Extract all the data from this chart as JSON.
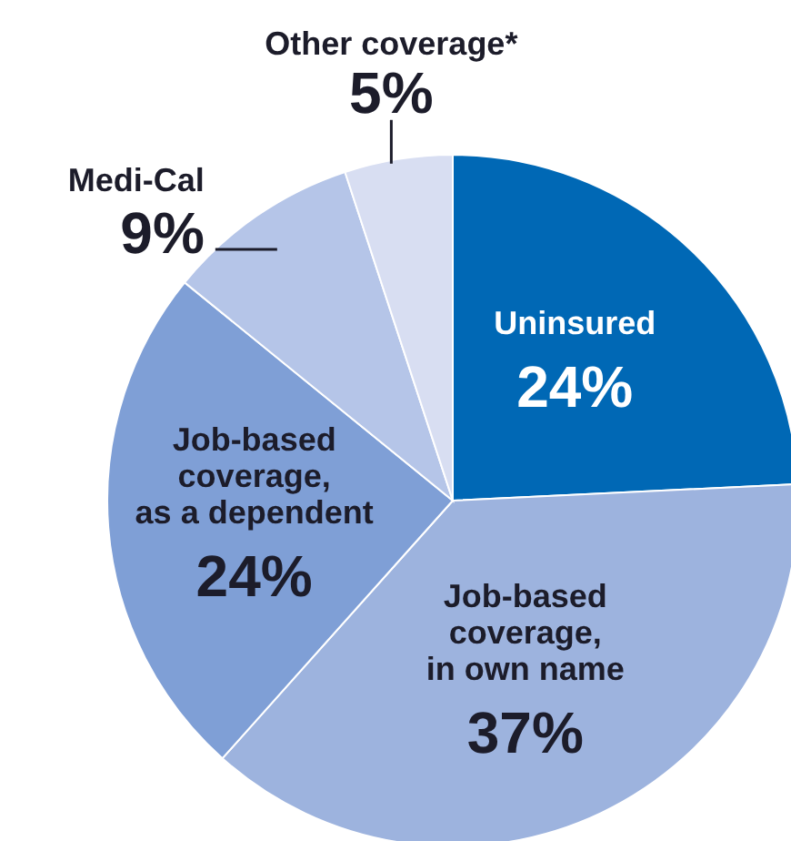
{
  "chart_data": {
    "type": "pie",
    "categories": [
      "Uninsured",
      "Job-based coverage, in own name",
      "Job-based coverage, as a dependent",
      "Medi-Cal",
      "Other coverage*"
    ],
    "values": [
      24,
      37,
      24,
      9,
      5
    ],
    "value_labels": [
      "24%",
      "37%",
      "24%",
      "9%",
      "5%"
    ],
    "colors": [
      "#0068b5",
      "#9db3de",
      "#7f9fd6",
      "#b5c5e8",
      "#d8def2"
    ],
    "legend": false
  }
}
